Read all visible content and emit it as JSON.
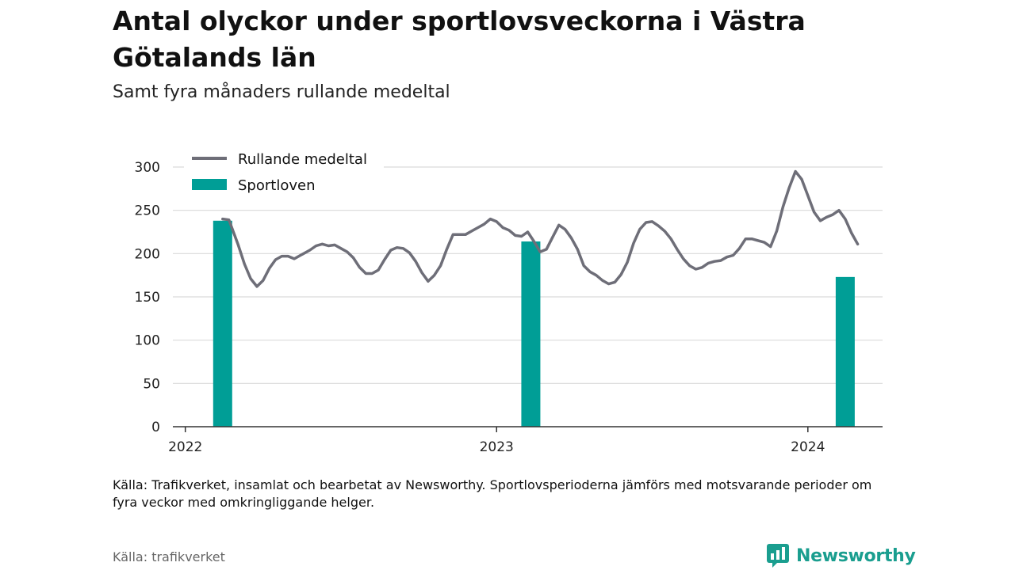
{
  "title": "Antal olyckor under sportlovsveckorna i Västra Götalands län",
  "subtitle": "Samt fyra månaders rullande medeltal",
  "note": "Källa: Trafikverket, insamlat och bearbetat av Newsworthy. Sportlovsperioderna jämförs med motsvarande perioder om fyra veckor med omkringliggande helger.",
  "source": "Källa: trafikverket",
  "brand": "Newsworthy",
  "colors": {
    "line": "#6e6e78",
    "bar": "#009e96",
    "grid": "#d9d9d9",
    "brand": "#1a9e8f"
  },
  "chart_data": {
    "type": "bar+line",
    "title": "Antal olyckor under sportlovsveckorna i Västra Götalands län",
    "subtitle": "Samt fyra månaders rullande medeltal",
    "ylim": [
      0,
      300
    ],
    "yticks": [
      0,
      50,
      100,
      150,
      200,
      250,
      300
    ],
    "xticks": [
      2022,
      2023,
      2024
    ],
    "grid": true,
    "legend_position": "top-left",
    "series": [
      {
        "name": "Rullande medeltal",
        "type": "line",
        "points": [
          [
            2022.12,
            240
          ],
          [
            2022.14,
            239
          ],
          [
            2022.17,
            210
          ],
          [
            2022.19,
            188
          ],
          [
            2022.21,
            171
          ],
          [
            2022.23,
            162
          ],
          [
            2022.25,
            169
          ],
          [
            2022.27,
            183
          ],
          [
            2022.29,
            193
          ],
          [
            2022.31,
            197
          ],
          [
            2022.33,
            197
          ],
          [
            2022.35,
            194
          ],
          [
            2022.37,
            198
          ],
          [
            2022.4,
            204
          ],
          [
            2022.42,
            209
          ],
          [
            2022.44,
            211
          ],
          [
            2022.46,
            209
          ],
          [
            2022.48,
            210
          ],
          [
            2022.5,
            206
          ],
          [
            2022.52,
            202
          ],
          [
            2022.54,
            195
          ],
          [
            2022.56,
            184
          ],
          [
            2022.58,
            177
          ],
          [
            2022.6,
            177
          ],
          [
            2022.62,
            181
          ],
          [
            2022.64,
            193
          ],
          [
            2022.66,
            204
          ],
          [
            2022.68,
            207
          ],
          [
            2022.7,
            206
          ],
          [
            2022.72,
            201
          ],
          [
            2022.74,
            191
          ],
          [
            2022.76,
            178
          ],
          [
            2022.78,
            168
          ],
          [
            2022.8,
            175
          ],
          [
            2022.82,
            186
          ],
          [
            2022.84,
            205
          ],
          [
            2022.86,
            222
          ],
          [
            2022.88,
            222
          ],
          [
            2022.9,
            222
          ],
          [
            2022.92,
            226
          ],
          [
            2022.94,
            230
          ],
          [
            2022.96,
            234
          ],
          [
            2022.98,
            240
          ],
          [
            2023.0,
            237
          ],
          [
            2023.02,
            230
          ],
          [
            2023.04,
            227
          ],
          [
            2023.06,
            221
          ],
          [
            2023.08,
            220
          ],
          [
            2023.1,
            225
          ],
          [
            2023.12,
            214
          ],
          [
            2023.14,
            202
          ],
          [
            2023.16,
            205
          ],
          [
            2023.18,
            219
          ],
          [
            2023.2,
            233
          ],
          [
            2023.22,
            228
          ],
          [
            2023.24,
            218
          ],
          [
            2023.26,
            205
          ],
          [
            2023.28,
            186
          ],
          [
            2023.3,
            179
          ],
          [
            2023.32,
            175
          ],
          [
            2023.34,
            169
          ],
          [
            2023.36,
            165
          ],
          [
            2023.38,
            167
          ],
          [
            2023.4,
            176
          ],
          [
            2023.42,
            190
          ],
          [
            2023.44,
            212
          ],
          [
            2023.46,
            228
          ],
          [
            2023.48,
            236
          ],
          [
            2023.5,
            237
          ],
          [
            2023.52,
            232
          ],
          [
            2023.54,
            226
          ],
          [
            2023.56,
            217
          ],
          [
            2023.58,
            205
          ],
          [
            2023.6,
            194
          ],
          [
            2023.62,
            186
          ],
          [
            2023.64,
            182
          ],
          [
            2023.66,
            184
          ],
          [
            2023.68,
            189
          ],
          [
            2023.7,
            191
          ],
          [
            2023.72,
            192
          ],
          [
            2023.74,
            196
          ],
          [
            2023.76,
            198
          ],
          [
            2023.78,
            206
          ],
          [
            2023.8,
            217
          ],
          [
            2023.82,
            217
          ],
          [
            2023.84,
            215
          ],
          [
            2023.86,
            213
          ],
          [
            2023.88,
            208
          ],
          [
            2023.9,
            226
          ],
          [
            2023.92,
            254
          ],
          [
            2023.94,
            276
          ],
          [
            2023.96,
            295
          ],
          [
            2023.98,
            286
          ],
          [
            2024.0,
            267
          ],
          [
            2024.02,
            248
          ],
          [
            2024.04,
            238
          ],
          [
            2024.06,
            242
          ],
          [
            2024.08,
            245
          ],
          [
            2024.1,
            250
          ],
          [
            2024.12,
            240
          ],
          [
            2024.14,
            224
          ],
          [
            2024.16,
            211
          ]
        ]
      },
      {
        "name": "Sportloven",
        "type": "bar",
        "points": [
          [
            2022.12,
            238
          ],
          [
            2023.11,
            214
          ],
          [
            2024.12,
            173
          ]
        ]
      }
    ]
  }
}
